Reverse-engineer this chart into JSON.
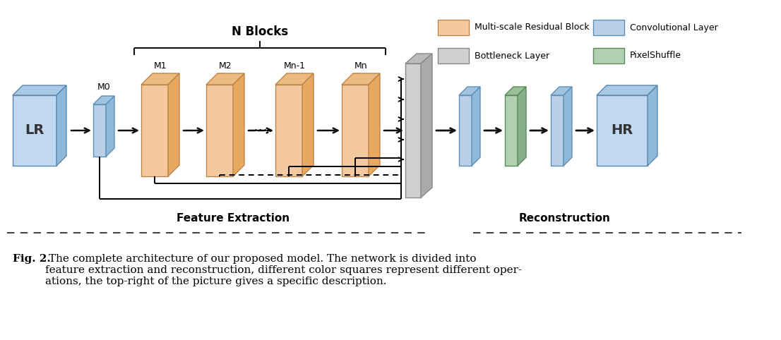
{
  "colors": {
    "orange_face": "#F5C9A0",
    "orange_side": "#E8A860",
    "orange_top": "#EDBA80",
    "orange_edge": "#B8864A",
    "blue_face": "#B8D0E8",
    "blue_side": "#90B8D8",
    "blue_top": "#A0C4E0",
    "blue_edge": "#6090B8",
    "gray_face": "#D0D0D0",
    "gray_side": "#AAAAAA",
    "gray_top": "#BBBBBB",
    "gray_edge": "#888888",
    "green_face": "#B0D0B0",
    "green_side": "#88B088",
    "green_top": "#9CC09C",
    "green_edge": "#5A8A5A",
    "lr_face": "#C0D8F0",
    "lr_side": "#90B8D8",
    "lr_top": "#A8C8E4",
    "lr_edge": "#5888B0",
    "background": "#FFFFFF",
    "arrow": "#111111",
    "text": "#111111",
    "dashed": "#444444"
  },
  "legend_items": [
    {
      "label": "Multi-scale Residual Block",
      "color": "#F5C9A0",
      "edge": "#B8864A"
    },
    {
      "label": "Convolutional Layer",
      "color": "#B8D0E8",
      "edge": "#6090B8"
    },
    {
      "label": "Bottleneck Layer",
      "color": "#D0D0D0",
      "edge": "#888888"
    },
    {
      "label": "PixelShuffle",
      "color": "#B0D0B0",
      "edge": "#5A8A5A"
    }
  ],
  "n_blocks_label": "N Blocks",
  "feature_extraction_label": "Feature Extraction",
  "reconstruction_label": "Reconstruction",
  "fig_caption_bold": "Fig. 2.",
  "fig_caption_text": " The complete architecture of our proposed model. The network is divided into\nfeature extraction and reconstruction, different color squares represent different oper-\nations, the top-right of the picture gives a specific description."
}
